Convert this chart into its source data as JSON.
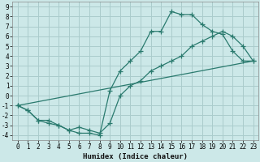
{
  "xlabel": "Humidex (Indice chaleur)",
  "bg_color": "#cce8e8",
  "grid_color": "#aacccc",
  "line_color": "#2a7a6e",
  "xlim": [
    -0.5,
    23.5
  ],
  "ylim": [
    -4.5,
    9.5
  ],
  "xticks": [
    0,
    1,
    2,
    3,
    4,
    5,
    6,
    7,
    8,
    9,
    10,
    11,
    12,
    13,
    14,
    15,
    16,
    17,
    18,
    19,
    20,
    21,
    22,
    23
  ],
  "yticks": [
    -4,
    -3,
    -2,
    -1,
    0,
    1,
    2,
    3,
    4,
    5,
    6,
    7,
    8,
    9
  ],
  "line1_x": [
    0,
    1,
    2,
    3,
    4,
    5,
    6,
    7,
    8,
    9,
    10,
    11,
    12,
    13,
    14,
    15,
    16,
    17,
    18,
    19,
    20,
    21,
    22,
    23
  ],
  "line1_y": [
    -1,
    -1.5,
    -2.5,
    -2.5,
    -3,
    -3.5,
    -3.8,
    -3.8,
    -4,
    0.5,
    2.5,
    3.5,
    4.5,
    6.5,
    6.5,
    8.5,
    8.2,
    8.2,
    7.2,
    6.5,
    6.2,
    4.5,
    3.5,
    3.5
  ],
  "line2_x": [
    0,
    1,
    2,
    3,
    4,
    5,
    6,
    7,
    8,
    9,
    10,
    11,
    12,
    13,
    14,
    15,
    16,
    17,
    18,
    19,
    20,
    21,
    22,
    23
  ],
  "line2_y": [
    -1,
    -1.5,
    -2.5,
    -2.8,
    -3.0,
    -3.5,
    -3.2,
    -3.5,
    -3.8,
    -2.8,
    0,
    1.0,
    1.5,
    2.5,
    3.0,
    3.5,
    4.0,
    5.0,
    5.5,
    6.0,
    6.5,
    6.0,
    5.0,
    3.5
  ],
  "line3_x": [
    0,
    23
  ],
  "line3_y": [
    -1,
    3.5
  ]
}
